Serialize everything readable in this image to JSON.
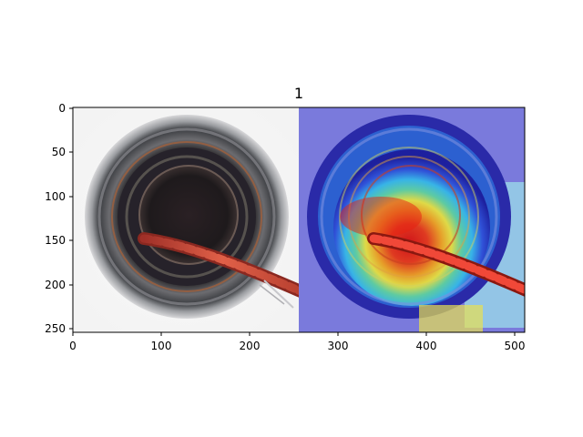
{
  "figure": {
    "title": "1",
    "x_ticks": [
      "0",
      "100",
      "200",
      "300",
      "400",
      "500"
    ],
    "y_ticks": [
      "0",
      "50",
      "100",
      "150",
      "200",
      "250"
    ],
    "image": {
      "left_panel": "photograph of a bottle opening viewed from above with a twisted copper wire strand crossing it",
      "right_panel": "same photograph overlaid with a jet-colormap heatmap (red focus in the lower-centre of the opening, blue at the rim)"
    },
    "colors": {
      "heat_red": "#e01010",
      "heat_yellow": "#f2e640",
      "heat_cyan": "#40c8e8",
      "heat_blue": "#3030c8",
      "wire": "#c84030"
    }
  }
}
